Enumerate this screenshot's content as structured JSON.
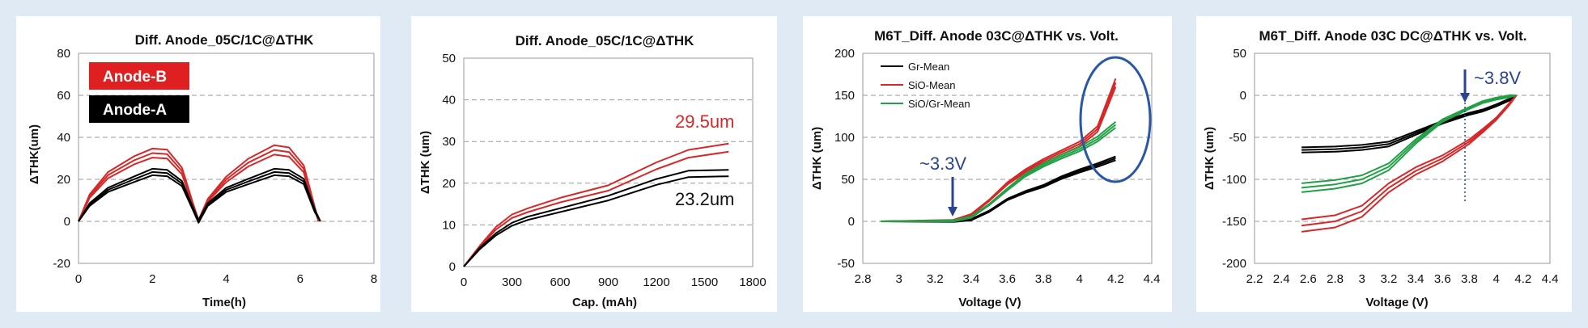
{
  "chart_data": [
    {
      "type": "line",
      "title": "Diff. Anode_05C/1C@ΔTHK",
      "xlabel": "Time(h)",
      "ylabel": "ΔTHK(um)",
      "xlim": [
        0,
        8
      ],
      "ylim": [
        -20,
        80
      ],
      "xticks": [
        "0",
        "2",
        "4",
        "6",
        "8"
      ],
      "yticks": [
        "-20",
        "0",
        "20",
        "40",
        "60",
        "80"
      ],
      "legend_placement": "top-left",
      "legend_boxes": [
        {
          "label": "Anode-B",
          "color": "#e02020"
        },
        {
          "label": "Anode-A",
          "color": "#000000"
        }
      ],
      "series": [
        {
          "name": "Anode-B",
          "color": "#d62828",
          "points": [
            [
              0,
              0
            ],
            [
              0.3,
              12
            ],
            [
              0.8,
              22
            ],
            [
              1.5,
              29
            ],
            [
              2.0,
              32.5
            ],
            [
              2.4,
              32
            ],
            [
              2.8,
              24
            ],
            [
              3.1,
              8
            ],
            [
              3.25,
              0
            ],
            [
              3.5,
              10
            ],
            [
              4.0,
              20
            ],
            [
              4.6,
              28
            ],
            [
              5.3,
              34
            ],
            [
              5.7,
              33
            ],
            [
              6.1,
              25
            ],
            [
              6.4,
              6
            ],
            [
              6.5,
              0
            ]
          ]
        },
        {
          "name": "Anode-A",
          "color": "#000000",
          "points": [
            [
              0,
              0
            ],
            [
              0.3,
              8
            ],
            [
              0.8,
              15
            ],
            [
              1.5,
              20
            ],
            [
              2.0,
              23.5
            ],
            [
              2.4,
              23
            ],
            [
              2.8,
              18
            ],
            [
              3.1,
              6
            ],
            [
              3.25,
              0
            ],
            [
              3.5,
              8
            ],
            [
              4.0,
              15
            ],
            [
              4.6,
              19
            ],
            [
              5.3,
              23.5
            ],
            [
              5.7,
              23
            ],
            [
              6.1,
              19
            ],
            [
              6.4,
              5
            ],
            [
              6.55,
              0
            ]
          ]
        }
      ]
    },
    {
      "type": "line",
      "title": "Diff. Anode_05C/1C@ΔTHK",
      "xlabel": "Cap. (mAh)",
      "ylabel": "ΔTHK (um)",
      "xlim": [
        0,
        1800
      ],
      "ylim": [
        0,
        50
      ],
      "xticks": [
        "0",
        "300",
        "600",
        "900",
        "1200",
        "1500",
        "1800"
      ],
      "yticks": [
        "0",
        "10",
        "20",
        "30",
        "40",
        "50"
      ],
      "annotations": [
        {
          "text": "29.5um",
          "color": "#d62828"
        },
        {
          "text": "23.2um",
          "color": "#111111"
        }
      ],
      "series": [
        {
          "name": "Anode-B",
          "color": "#d62828",
          "points": [
            [
              0,
              0
            ],
            [
              100,
              5
            ],
            [
              200,
              9.5
            ],
            [
              300,
              12.5
            ],
            [
              400,
              14
            ],
            [
              600,
              16.5
            ],
            [
              900,
              19.5
            ],
            [
              1200,
              25
            ],
            [
              1400,
              28
            ],
            [
              1650,
              29.5
            ]
          ]
        },
        {
          "name": "Anode-A",
          "color": "#000000",
          "points": [
            [
              0,
              0
            ],
            [
              100,
              4.5
            ],
            [
              200,
              8
            ],
            [
              300,
              10.5
            ],
            [
              400,
              12
            ],
            [
              600,
              14
            ],
            [
              900,
              17
            ],
            [
              1200,
              21
            ],
            [
              1400,
              23
            ],
            [
              1650,
              23.2
            ]
          ]
        }
      ]
    },
    {
      "type": "line",
      "title": "M6T_Diff. Anode 03C@ΔTHK vs. Volt.",
      "xlabel": "Voltage (V)",
      "ylabel": "ΔTHK (um)",
      "xlim": [
        2.8,
        4.4
      ],
      "ylim": [
        -50,
        200
      ],
      "xticks": [
        "2.8",
        "3",
        "3.2",
        "3.4",
        "3.6",
        "3.8",
        "4",
        "4.2",
        "4.4"
      ],
      "yticks": [
        "-50",
        "0",
        "50",
        "100",
        "150",
        "200"
      ],
      "legend_placement": "top-left",
      "annotations": [
        {
          "text": "~3.3V",
          "color": "#2a4494"
        }
      ],
      "series": [
        {
          "name": "Gr-Mean",
          "color": "#000000",
          "points": [
            [
              2.9,
              0
            ],
            [
              3.3,
              0
            ],
            [
              3.4,
              2
            ],
            [
              3.5,
              12
            ],
            [
              3.6,
              26
            ],
            [
              3.7,
              35
            ],
            [
              3.8,
              42
            ],
            [
              3.9,
              52
            ],
            [
              4.0,
              60
            ],
            [
              4.1,
              67
            ],
            [
              4.2,
              75
            ]
          ]
        },
        {
          "name": "SiO-Mean",
          "color": "#d62828",
          "points": [
            [
              2.9,
              0
            ],
            [
              3.3,
              1
            ],
            [
              3.4,
              8
            ],
            [
              3.5,
              25
            ],
            [
              3.6,
              45
            ],
            [
              3.7,
              60
            ],
            [
              3.8,
              72
            ],
            [
              3.9,
              82
            ],
            [
              4.0,
              92
            ],
            [
              4.1,
              110
            ],
            [
              4.2,
              165
            ]
          ]
        },
        {
          "name": "SiO/Gr-Mean",
          "color": "#22a046",
          "points": [
            [
              2.9,
              0
            ],
            [
              3.3,
              0.5
            ],
            [
              3.4,
              5
            ],
            [
              3.5,
              20
            ],
            [
              3.6,
              38
            ],
            [
              3.7,
              55
            ],
            [
              3.8,
              67
            ],
            [
              3.9,
              77
            ],
            [
              4.0,
              86
            ],
            [
              4.1,
              98
            ],
            [
              4.2,
              115
            ]
          ]
        }
      ]
    },
    {
      "type": "line",
      "title": "M6T_Diff. Anode 03C DC@ΔTHK vs. Volt.",
      "xlabel": "Voltage (V)",
      "ylabel": "ΔTHK (um)",
      "xlim": [
        2.2,
        4.4
      ],
      "ylim": [
        -200,
        50
      ],
      "xticks": [
        "2.2",
        "2.4",
        "2.6",
        "2.8",
        "3",
        "3.2",
        "3.4",
        "3.6",
        "3.8",
        "4",
        "4.2",
        "4.4"
      ],
      "yticks": [
        "-200",
        "-150",
        "-100",
        "-50",
        "0",
        "50"
      ],
      "annotations": [
        {
          "text": "~3.8V",
          "color": "#2a4494"
        }
      ],
      "series": [
        {
          "name": "Gr",
          "color": "#000000",
          "points": [
            [
              2.55,
              -65
            ],
            [
              2.8,
              -64
            ],
            [
              3.0,
              -62
            ],
            [
              3.2,
              -58
            ],
            [
              3.4,
              -45
            ],
            [
              3.6,
              -32
            ],
            [
              3.8,
              -22
            ],
            [
              3.9,
              -18
            ],
            [
              4.0,
              -12
            ],
            [
              4.1,
              -5
            ],
            [
              4.15,
              0
            ]
          ]
        },
        {
          "name": "SiO",
          "color": "#d62828",
          "points": [
            [
              2.55,
              -155
            ],
            [
              2.8,
              -150
            ],
            [
              3.0,
              -138
            ],
            [
              3.2,
              -110
            ],
            [
              3.4,
              -90
            ],
            [
              3.6,
              -75
            ],
            [
              3.8,
              -55
            ],
            [
              3.9,
              -42
            ],
            [
              4.0,
              -28
            ],
            [
              4.1,
              -10
            ],
            [
              4.15,
              0
            ]
          ]
        },
        {
          "name": "SiO/Gr",
          "color": "#22a046",
          "points": [
            [
              2.55,
              -110
            ],
            [
              2.8,
              -106
            ],
            [
              3.0,
              -100
            ],
            [
              3.2,
              -85
            ],
            [
              3.4,
              -55
            ],
            [
              3.6,
              -30
            ],
            [
              3.8,
              -15
            ],
            [
              3.9,
              -8
            ],
            [
              4.0,
              -4
            ],
            [
              4.1,
              -1
            ],
            [
              4.15,
              0
            ]
          ]
        }
      ]
    }
  ]
}
